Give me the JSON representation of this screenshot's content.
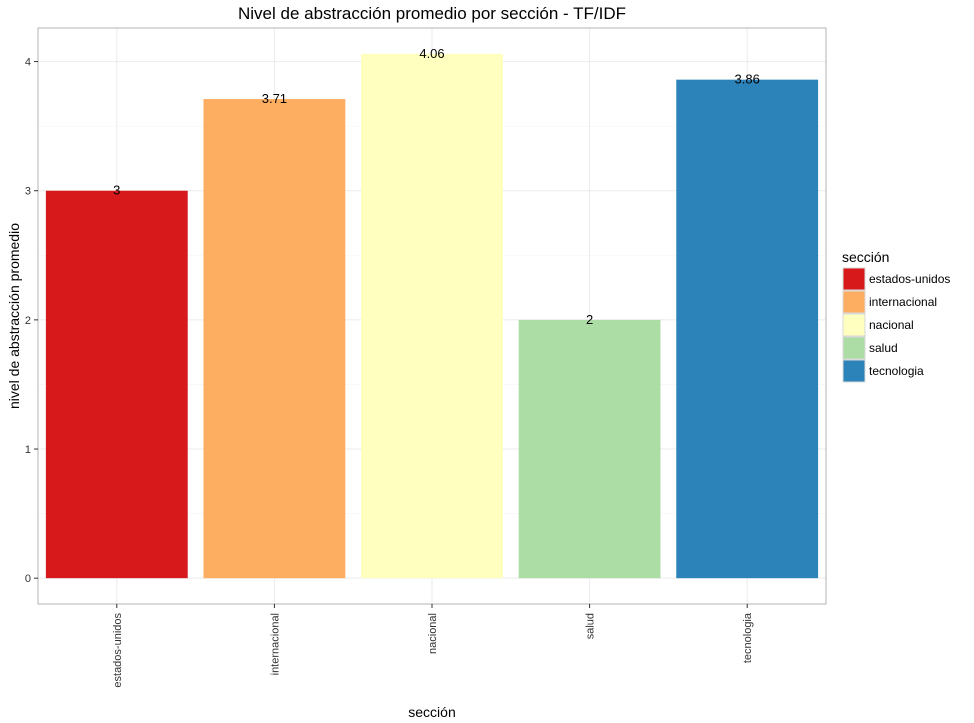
{
  "chart_data": {
    "type": "bar",
    "title": "Nivel de abstracción promedio por sección - TF/IDF",
    "xlabel": "sección",
    "ylabel": "nivel de abstracción promedio",
    "categories": [
      "estados-unidos",
      "internacional",
      "nacional",
      "salud",
      "tecnologia"
    ],
    "values": [
      3,
      3.71,
      4.06,
      2,
      3.86
    ],
    "data_labels": [
      "3",
      "3.71",
      "4.06",
      "2",
      "3.86"
    ],
    "colors": [
      "#d7191c",
      "#fdae61",
      "#ffffbf",
      "#abdda4",
      "#2b83ba"
    ],
    "ylim": [
      -0.2,
      4.26
    ],
    "yticks": [
      0,
      1,
      2,
      3,
      4
    ],
    "grid": true,
    "legend": {
      "title": "sección",
      "position": "right",
      "entries": [
        "estados-unidos",
        "internacional",
        "nacional",
        "salud",
        "tecnologia"
      ]
    }
  }
}
